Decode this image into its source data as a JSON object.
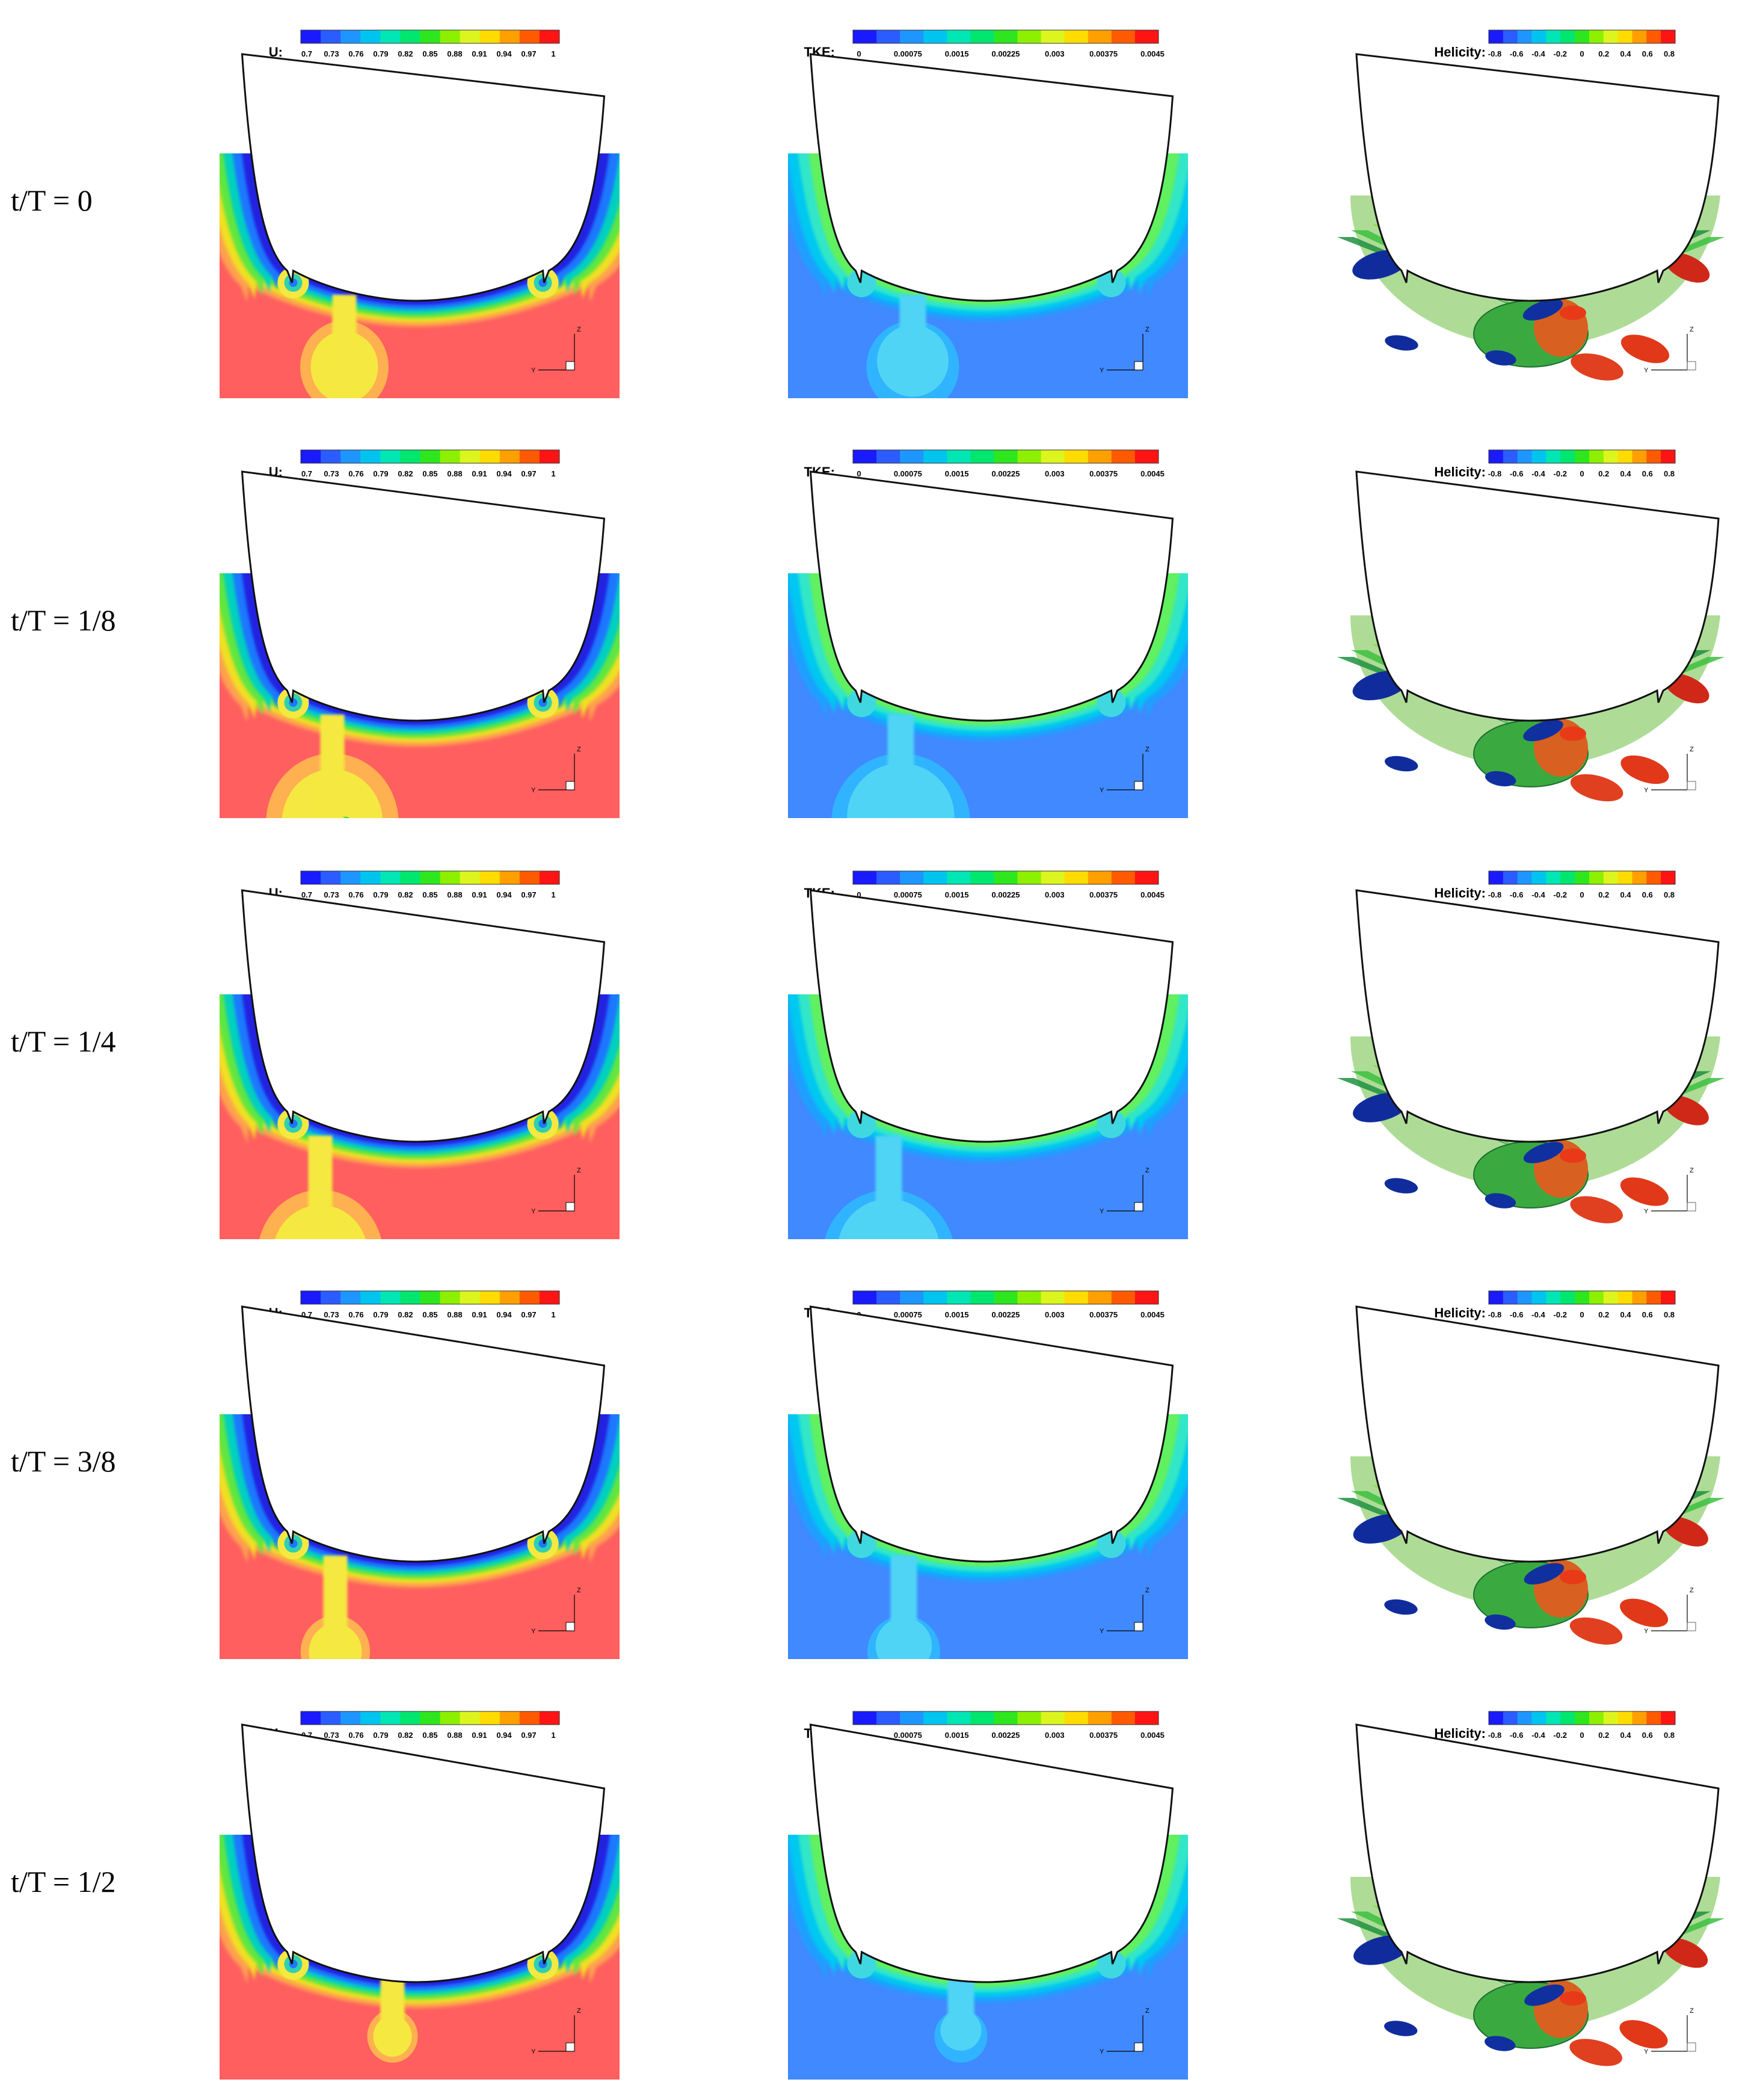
{
  "figure": {
    "rows": [
      {
        "label": "t/T = 0"
      },
      {
        "label": "t/T = 1/8"
      },
      {
        "label": "t/T = 1/4"
      },
      {
        "label": "t/T = 3/8"
      },
      {
        "label": "t/T = 1/2"
      }
    ],
    "columns": [
      {
        "kind": "velocity",
        "colorbar_title": "U:",
        "ticks": [
          "0.7",
          "0.73",
          "0.76",
          "0.79",
          "0.82",
          "0.85",
          "0.88",
          "0.91",
          "0.94",
          "0.97",
          "1"
        ],
        "background": "#FF5F5F"
      },
      {
        "kind": "tke",
        "colorbar_title": "TKE:",
        "ticks": [
          "0",
          "0.00075",
          "0.0015",
          "0.00225",
          "0.003",
          "0.00375",
          "0.0045"
        ],
        "background": "#4189FF"
      },
      {
        "kind": "helicity",
        "colorbar_title": "Helicity:",
        "ticks": [
          "-0.8",
          "-0.6",
          "-0.4",
          "-0.2",
          "0",
          "0.2",
          "0.4",
          "0.6",
          "0.8"
        ],
        "background": "#FFFFFF"
      }
    ],
    "axis_labels": {
      "vertical": "Z",
      "horizontal": "Y"
    },
    "colormap": [
      "#1A1AFF",
      "#2B5CFF",
      "#1E96FF",
      "#00C4F0",
      "#00E6B4",
      "#00E66E",
      "#2EE61E",
      "#8CF000",
      "#DCF51E",
      "#FFDC00",
      "#FFA000",
      "#FF5A00",
      "#FF1414"
    ]
  }
}
